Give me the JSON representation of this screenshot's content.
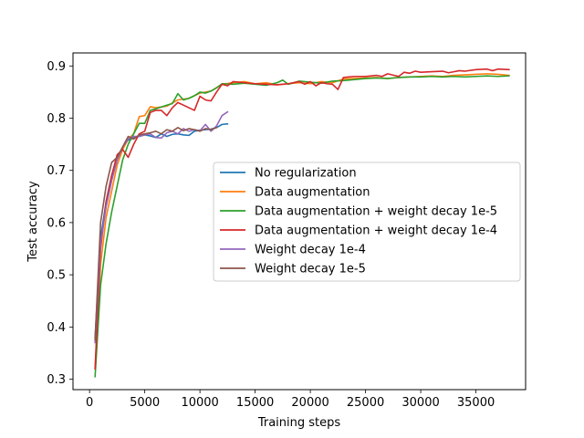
{
  "chart_data": {
    "type": "line",
    "title": "",
    "xlabel": "Training steps",
    "ylabel": "Test accuracy",
    "xlim": [
      -1500,
      39500
    ],
    "ylim": [
      0.28,
      0.925
    ],
    "xticks": [
      0,
      5000,
      10000,
      15000,
      20000,
      25000,
      30000,
      35000
    ],
    "yticks": [
      0.3,
      0.4,
      0.5,
      0.6,
      0.7,
      0.8,
      0.9
    ],
    "grid": false,
    "legend_placement": "center-right",
    "series": [
      {
        "name": "No regularization",
        "color": "#1f77b4",
        "x": [
          500,
          1000,
          1500,
          2000,
          2500,
          3000,
          3500,
          4000,
          4500,
          5000,
          5500,
          6000,
          6500,
          7000,
          7500,
          8000,
          8500,
          9000,
          9500,
          10000,
          10500,
          11000,
          11500,
          12000,
          12500
        ],
        "y": [
          0.38,
          0.57,
          0.64,
          0.69,
          0.72,
          0.745,
          0.758,
          0.762,
          0.765,
          0.768,
          0.766,
          0.763,
          0.77,
          0.765,
          0.769,
          0.77,
          0.768,
          0.767,
          0.775,
          0.777,
          0.778,
          0.779,
          0.782,
          0.788,
          0.789
        ]
      },
      {
        "name": "Data augmentation",
        "color": "#ff7f0e",
        "x": [
          500,
          1000,
          1500,
          2000,
          2500,
          3000,
          3500,
          4000,
          4500,
          5000,
          5500,
          6000,
          7000,
          8000,
          9000,
          10000,
          11000,
          12000,
          13000,
          14000,
          15000,
          16000,
          17000,
          18000,
          19000,
          20000,
          21000,
          22000,
          23000,
          24000,
          25000,
          26000,
          27000,
          28000,
          29000,
          30000,
          31000,
          32000,
          33000,
          34000,
          35000,
          36000,
          37000,
          38000
        ],
        "y": [
          0.32,
          0.52,
          0.61,
          0.66,
          0.71,
          0.74,
          0.76,
          0.77,
          0.803,
          0.805,
          0.822,
          0.82,
          0.823,
          0.835,
          0.838,
          0.848,
          0.852,
          0.865,
          0.868,
          0.87,
          0.866,
          0.868,
          0.864,
          0.866,
          0.868,
          0.866,
          0.87,
          0.868,
          0.875,
          0.876,
          0.877,
          0.878,
          0.876,
          0.878,
          0.879,
          0.88,
          0.881,
          0.88,
          0.882,
          0.883,
          0.884,
          0.885,
          0.884,
          0.882
        ]
      },
      {
        "name": "Data augmentation + weight decay 1e-5",
        "color": "#2ca02c",
        "x": [
          500,
          1000,
          1500,
          2000,
          2500,
          3000,
          3500,
          4000,
          4500,
          5000,
          5500,
          6000,
          7000,
          7500,
          8000,
          8500,
          9000,
          9500,
          10000,
          10500,
          11000,
          11500,
          12000,
          13000,
          14000,
          15000,
          16000,
          17000,
          17500,
          18000,
          19000,
          20000,
          21000,
          22000,
          23000,
          24000,
          25000,
          26000,
          27000,
          28000,
          29000,
          30000,
          31000,
          32000,
          33000,
          34000,
          35000,
          36000,
          37000,
          38000
        ],
        "y": [
          0.305,
          0.48,
          0.56,
          0.62,
          0.67,
          0.72,
          0.75,
          0.77,
          0.79,
          0.79,
          0.815,
          0.818,
          0.825,
          0.828,
          0.847,
          0.835,
          0.838,
          0.843,
          0.85,
          0.848,
          0.852,
          0.858,
          0.866,
          0.865,
          0.867,
          0.865,
          0.863,
          0.868,
          0.873,
          0.865,
          0.871,
          0.869,
          0.867,
          0.871,
          0.872,
          0.874,
          0.876,
          0.877,
          0.876,
          0.878,
          0.879,
          0.879,
          0.88,
          0.879,
          0.88,
          0.879,
          0.88,
          0.881,
          0.88,
          0.881
        ]
      },
      {
        "name": "Data augmentation + weight decay 1e-4",
        "color": "#d62728",
        "x": [
          500,
          1000,
          1500,
          2000,
          2500,
          3000,
          3500,
          4000,
          4500,
          5000,
          5500,
          6000,
          6500,
          7000,
          7500,
          8000,
          8500,
          9000,
          9500,
          10000,
          10500,
          11000,
          11500,
          12000,
          12500,
          13000,
          14000,
          15000,
          16000,
          17000,
          18000,
          19000,
          19500,
          20000,
          20500,
          21000,
          21500,
          22000,
          22500,
          23000,
          24000,
          25000,
          26000,
          26500,
          27000,
          28000,
          28500,
          29000,
          29500,
          30000,
          31000,
          32000,
          32500,
          33000,
          33500,
          34000,
          35000,
          36000,
          36500,
          37000,
          38000
        ],
        "y": [
          0.32,
          0.55,
          0.64,
          0.69,
          0.73,
          0.74,
          0.725,
          0.75,
          0.77,
          0.775,
          0.811,
          0.815,
          0.815,
          0.805,
          0.82,
          0.83,
          0.825,
          0.82,
          0.815,
          0.842,
          0.835,
          0.833,
          0.85,
          0.865,
          0.862,
          0.87,
          0.868,
          0.866,
          0.865,
          0.864,
          0.866,
          0.87,
          0.865,
          0.87,
          0.862,
          0.868,
          0.866,
          0.865,
          0.855,
          0.878,
          0.88,
          0.88,
          0.882,
          0.88,
          0.885,
          0.88,
          0.888,
          0.886,
          0.89,
          0.888,
          0.889,
          0.89,
          0.887,
          0.889,
          0.891,
          0.89,
          0.893,
          0.894,
          0.891,
          0.894,
          0.893
        ]
      },
      {
        "name": "Weight decay 1e-4",
        "color": "#9467bd",
        "x": [
          500,
          1000,
          1500,
          2000,
          2500,
          3000,
          3500,
          4000,
          4500,
          5000,
          5500,
          6000,
          6500,
          7000,
          7500,
          8000,
          8500,
          9000,
          9500,
          10000,
          10500,
          11000,
          11500,
          12000,
          12500
        ],
        "y": [
          0.37,
          0.56,
          0.63,
          0.68,
          0.72,
          0.745,
          0.76,
          0.765,
          0.765,
          0.768,
          0.77,
          0.763,
          0.762,
          0.772,
          0.775,
          0.77,
          0.78,
          0.775,
          0.778,
          0.776,
          0.788,
          0.775,
          0.785,
          0.805,
          0.812
        ]
      },
      {
        "name": "Weight decay 1e-5",
        "color": "#8c564b",
        "x": [
          500,
          1000,
          1500,
          2000,
          2500,
          3000,
          3500,
          4000,
          4500,
          5000,
          5500,
          6000,
          6500,
          7000,
          7500,
          8000,
          8500,
          9000,
          9500,
          10000,
          10500,
          11000,
          11500
        ],
        "y": [
          0.375,
          0.6,
          0.67,
          0.715,
          0.725,
          0.745,
          0.765,
          0.76,
          0.768,
          0.77,
          0.772,
          0.775,
          0.77,
          0.778,
          0.775,
          0.782,
          0.776,
          0.78,
          0.778,
          0.775,
          0.78,
          0.778,
          0.782
        ]
      }
    ]
  }
}
